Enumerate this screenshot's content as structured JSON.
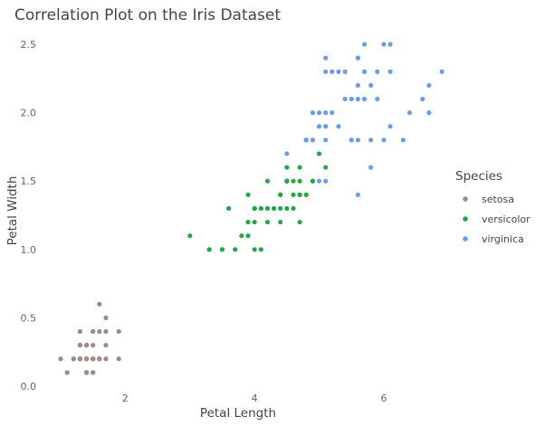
{
  "chart_data": {
    "type": "scatter",
    "title": "Correlation Plot on the Iris Dataset",
    "xlabel": "Petal Length",
    "ylabel": "Petal Width",
    "xlim": [
      1.0,
      6.9
    ],
    "ylim": [
      0.0,
      2.5
    ],
    "x_ticks": [
      2,
      4,
      6
    ],
    "x_tick_labels": [
      "2",
      "4",
      "6"
    ],
    "y_ticks": [
      0.0,
      0.5,
      1.0,
      1.5,
      2.0,
      2.5
    ],
    "y_tick_labels": [
      "0.0",
      "0.5",
      "1.0",
      "1.5",
      "2.0",
      "2.5"
    ],
    "grid": false,
    "legend": {
      "title": "Species",
      "placement": "right"
    },
    "series": [
      {
        "name": "setosa",
        "color": "#A18A84",
        "points": [
          [
            1.4,
            0.2
          ],
          [
            1.4,
            0.2
          ],
          [
            1.3,
            0.2
          ],
          [
            1.5,
            0.2
          ],
          [
            1.4,
            0.2
          ],
          [
            1.7,
            0.4
          ],
          [
            1.4,
            0.3
          ],
          [
            1.5,
            0.2
          ],
          [
            1.4,
            0.2
          ],
          [
            1.5,
            0.1
          ],
          [
            1.5,
            0.2
          ],
          [
            1.6,
            0.2
          ],
          [
            1.4,
            0.1
          ],
          [
            1.1,
            0.1
          ],
          [
            1.2,
            0.2
          ],
          [
            1.5,
            0.4
          ],
          [
            1.3,
            0.4
          ],
          [
            1.4,
            0.3
          ],
          [
            1.7,
            0.3
          ],
          [
            1.5,
            0.3
          ],
          [
            1.7,
            0.2
          ],
          [
            1.5,
            0.4
          ],
          [
            1.0,
            0.2
          ],
          [
            1.7,
            0.5
          ],
          [
            1.9,
            0.2
          ],
          [
            1.6,
            0.2
          ],
          [
            1.6,
            0.4
          ],
          [
            1.5,
            0.2
          ],
          [
            1.4,
            0.2
          ],
          [
            1.6,
            0.2
          ],
          [
            1.6,
            0.2
          ],
          [
            1.5,
            0.4
          ],
          [
            1.5,
            0.1
          ],
          [
            1.4,
            0.2
          ],
          [
            1.5,
            0.2
          ],
          [
            1.2,
            0.2
          ],
          [
            1.3,
            0.2
          ],
          [
            1.4,
            0.1
          ],
          [
            1.3,
            0.2
          ],
          [
            1.5,
            0.2
          ],
          [
            1.3,
            0.3
          ],
          [
            1.3,
            0.3
          ],
          [
            1.3,
            0.2
          ],
          [
            1.6,
            0.6
          ],
          [
            1.9,
            0.4
          ],
          [
            1.4,
            0.3
          ],
          [
            1.6,
            0.2
          ],
          [
            1.4,
            0.2
          ],
          [
            1.5,
            0.2
          ],
          [
            1.4,
            0.2
          ]
        ]
      },
      {
        "name": "versicolor",
        "color": "#27A348",
        "points": [
          [
            4.7,
            1.4
          ],
          [
            4.5,
            1.5
          ],
          [
            4.9,
            1.5
          ],
          [
            4.0,
            1.3
          ],
          [
            4.6,
            1.5
          ],
          [
            4.5,
            1.3
          ],
          [
            4.7,
            1.6
          ],
          [
            3.3,
            1.0
          ],
          [
            4.6,
            1.3
          ],
          [
            3.9,
            1.4
          ],
          [
            3.5,
            1.0
          ],
          [
            4.2,
            1.5
          ],
          [
            4.0,
            1.0
          ],
          [
            4.7,
            1.4
          ],
          [
            3.6,
            1.3
          ],
          [
            4.4,
            1.4
          ],
          [
            4.5,
            1.5
          ],
          [
            4.1,
            1.0
          ],
          [
            4.5,
            1.5
          ],
          [
            3.9,
            1.1
          ],
          [
            4.8,
            1.8
          ],
          [
            4.0,
            1.3
          ],
          [
            4.9,
            1.5
          ],
          [
            4.7,
            1.2
          ],
          [
            4.3,
            1.3
          ],
          [
            4.4,
            1.4
          ],
          [
            4.8,
            1.4
          ],
          [
            5.0,
            1.7
          ],
          [
            4.5,
            1.5
          ],
          [
            3.5,
            1.0
          ],
          [
            3.8,
            1.1
          ],
          [
            3.7,
            1.0
          ],
          [
            3.9,
            1.2
          ],
          [
            5.1,
            1.6
          ],
          [
            4.5,
            1.5
          ],
          [
            4.5,
            1.6
          ],
          [
            4.7,
            1.5
          ],
          [
            4.4,
            1.3
          ],
          [
            4.1,
            1.3
          ],
          [
            4.0,
            1.3
          ],
          [
            4.4,
            1.2
          ],
          [
            4.6,
            1.4
          ],
          [
            4.0,
            1.2
          ],
          [
            3.3,
            1.0
          ],
          [
            4.2,
            1.3
          ],
          [
            4.2,
            1.2
          ],
          [
            4.2,
            1.3
          ],
          [
            4.3,
            1.3
          ],
          [
            3.0,
            1.1
          ],
          [
            4.1,
            1.3
          ]
        ]
      },
      {
        "name": "virginica",
        "color": "#6E9CE3",
        "points": [
          [
            6.0,
            2.5
          ],
          [
            5.1,
            1.9
          ],
          [
            5.9,
            2.1
          ],
          [
            5.6,
            1.8
          ],
          [
            5.8,
            2.2
          ],
          [
            6.6,
            2.1
          ],
          [
            4.5,
            1.7
          ],
          [
            6.3,
            1.8
          ],
          [
            5.8,
            1.8
          ],
          [
            6.1,
            2.5
          ],
          [
            5.1,
            2.0
          ],
          [
            5.3,
            1.9
          ],
          [
            5.5,
            2.1
          ],
          [
            5.0,
            2.0
          ],
          [
            5.1,
            2.4
          ],
          [
            5.3,
            2.3
          ],
          [
            5.5,
            1.8
          ],
          [
            6.7,
            2.2
          ],
          [
            6.9,
            2.3
          ],
          [
            5.0,
            1.5
          ],
          [
            5.7,
            2.3
          ],
          [
            4.9,
            2.0
          ],
          [
            6.7,
            2.0
          ],
          [
            4.9,
            1.8
          ],
          [
            5.7,
            2.1
          ],
          [
            6.0,
            1.8
          ],
          [
            4.8,
            1.8
          ],
          [
            4.9,
            1.8
          ],
          [
            5.6,
            2.1
          ],
          [
            5.8,
            1.6
          ],
          [
            6.1,
            1.9
          ],
          [
            6.4,
            2.0
          ],
          [
            5.6,
            2.2
          ],
          [
            5.1,
            1.5
          ],
          [
            5.6,
            1.4
          ],
          [
            6.1,
            2.3
          ],
          [
            5.6,
            2.4
          ],
          [
            5.5,
            1.8
          ],
          [
            4.8,
            1.8
          ],
          [
            5.4,
            2.1
          ],
          [
            5.6,
            2.4
          ],
          [
            5.1,
            2.3
          ],
          [
            5.1,
            1.9
          ],
          [
            5.9,
            2.3
          ],
          [
            5.7,
            2.5
          ],
          [
            5.2,
            2.3
          ],
          [
            5.0,
            1.9
          ],
          [
            5.2,
            2.0
          ],
          [
            5.4,
            2.3
          ],
          [
            5.1,
            1.8
          ]
        ]
      }
    ]
  }
}
